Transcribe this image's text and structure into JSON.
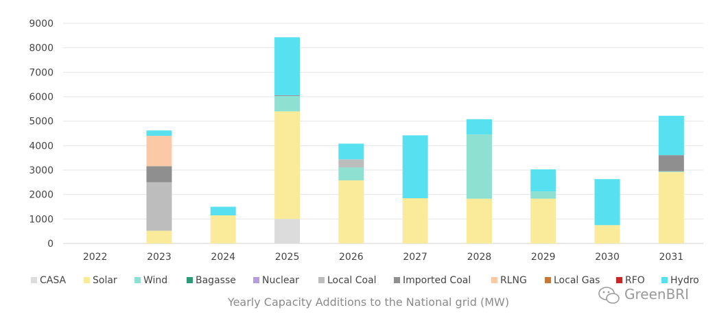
{
  "chart_data": {
    "type": "bar",
    "stacked": true,
    "title": "Yearly Capacity Additions to the National grid (MW)",
    "xlabel": "",
    "ylabel": "",
    "ylim": [
      0,
      9000
    ],
    "yticks": [
      0,
      1000,
      2000,
      3000,
      4000,
      5000,
      6000,
      7000,
      8000,
      9000
    ],
    "grid": true,
    "legend_position": "bottom",
    "categories": [
      "2022",
      "2023",
      "2024",
      "2025",
      "2026",
      "2027",
      "2028",
      "2029",
      "2030",
      "2031"
    ],
    "series": [
      {
        "name": "CASA",
        "color": "#dcdcdc",
        "values": [
          0,
          0,
          0,
          1000,
          0,
          0,
          0,
          0,
          0,
          0
        ]
      },
      {
        "name": "Solar",
        "color": "#faeb9b",
        "values": [
          0,
          520,
          1150,
          4400,
          2580,
          1850,
          1830,
          1830,
          750,
          2920
        ]
      },
      {
        "name": "Wind",
        "color": "#8ee0d0",
        "values": [
          0,
          0,
          0,
          630,
          530,
          0,
          2630,
          300,
          0,
          30
        ]
      },
      {
        "name": "Bagasse",
        "color": "#2e9b78",
        "values": [
          0,
          0,
          0,
          0,
          0,
          0,
          0,
          0,
          0,
          0
        ]
      },
      {
        "name": "Nuclear",
        "color": "#b39ddb",
        "values": [
          0,
          0,
          0,
          0,
          0,
          0,
          0,
          0,
          0,
          0
        ]
      },
      {
        "name": "Local Coal",
        "color": "#bdbdbd",
        "values": [
          0,
          1980,
          0,
          0,
          330,
          0,
          0,
          0,
          0,
          0
        ]
      },
      {
        "name": "Imported Coal",
        "color": "#8f8f8f",
        "values": [
          0,
          660,
          0,
          30,
          0,
          0,
          0,
          0,
          0,
          660
        ]
      },
      {
        "name": "RLNG",
        "color": "#fbc9a6",
        "values": [
          0,
          1240,
          0,
          0,
          0,
          0,
          0,
          0,
          0,
          0
        ]
      },
      {
        "name": "Local Gas",
        "color": "#c6773a",
        "values": [
          0,
          0,
          0,
          0,
          0,
          0,
          0,
          0,
          0,
          0
        ]
      },
      {
        "name": "RFO",
        "color": "#c62828",
        "values": [
          0,
          0,
          0,
          0,
          0,
          0,
          0,
          0,
          0,
          0
        ]
      },
      {
        "name": "Hydro",
        "color": "#56e0f0",
        "values": [
          0,
          220,
          350,
          2370,
          640,
          2570,
          620,
          900,
          1880,
          1610
        ]
      }
    ]
  },
  "watermark": "GreenBRI"
}
